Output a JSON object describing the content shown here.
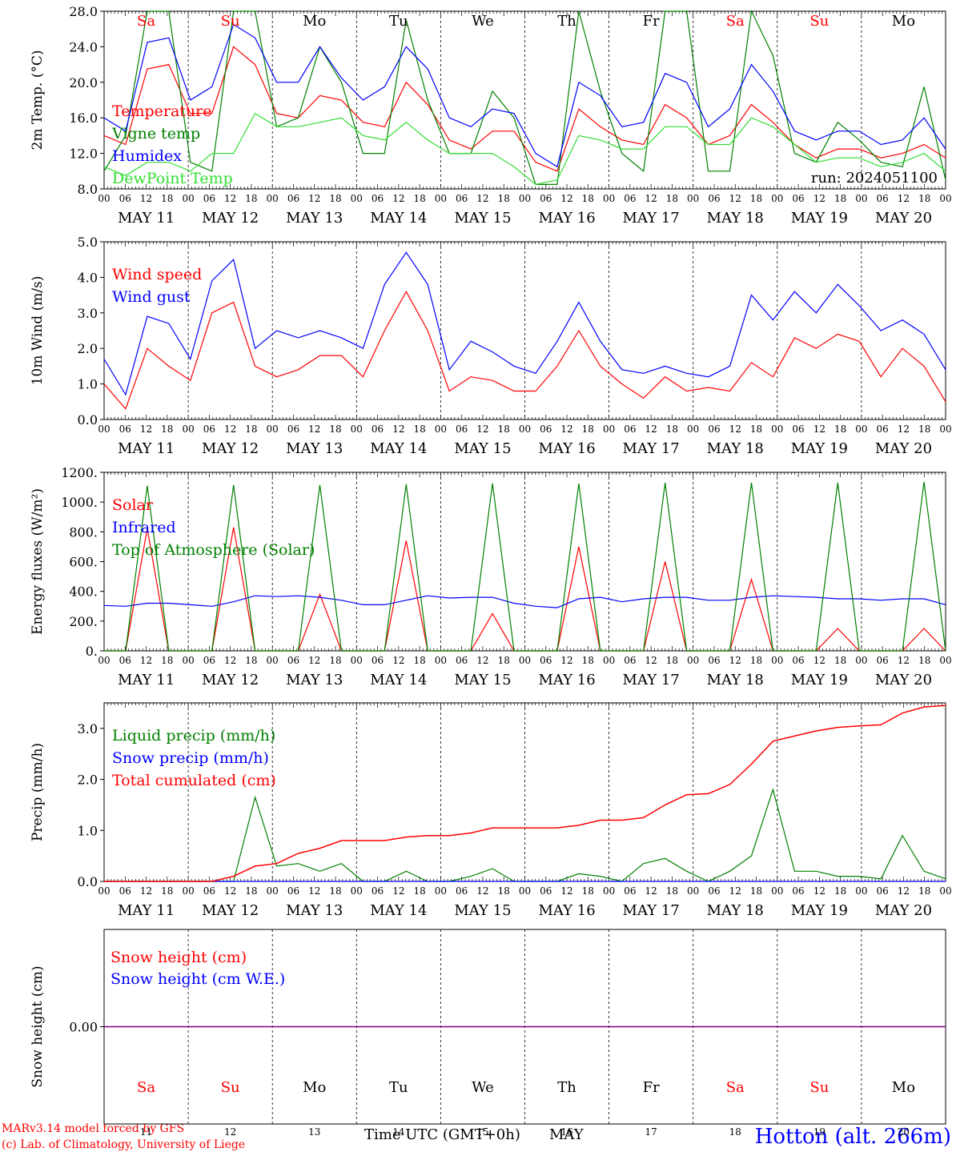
{
  "footer": {
    "model_line": "MARv3.14 model forced by GFS",
    "credit_line": "(c) Lab. of Climatology, University of Liege",
    "x_axis_title": "Time UTC (GMT+0h)",
    "month": "MAY",
    "station": "Hotton (alt. 266m)"
  },
  "colors": {
    "red": "#ff0000",
    "green": "#008000",
    "blue": "#0000ff",
    "light_green": "#33dd33",
    "purple": "#800080",
    "station_blue": "#0000ff"
  },
  "chart_data": [
    {
      "type": "line",
      "ylabel": "2m Temp. (°C)",
      "ylim": [
        8,
        28
      ],
      "yticks": [
        "8.0",
        "12.0",
        "16.0",
        "20.0",
        "24.0",
        "28.0"
      ],
      "annotation": "run: 2024051100",
      "day_labels": [
        "Sa",
        "Su",
        "Mo",
        "Tu",
        "We",
        "Th",
        "Fr",
        "Sa",
        "Su",
        "Mo"
      ],
      "date_labels": [
        "MAY 11",
        "MAY 12",
        "MAY 13",
        "MAY 14",
        "MAY 15",
        "MAY 16",
        "MAY 17",
        "MAY 18",
        "MAY 19",
        "MAY 20"
      ],
      "hour_ticks": [
        "00",
        "06",
        "12",
        "18"
      ],
      "x_step_hours": 6,
      "series": [
        {
          "name": "Temperature",
          "color": "#ff0000",
          "values": [
            14.0,
            13.0,
            21.5,
            22.0,
            16.5,
            16.5,
            24.0,
            22.0,
            16.5,
            16.0,
            18.5,
            18.0,
            15.5,
            15.0,
            20.0,
            17.5,
            13.5,
            12.5,
            14.5,
            14.5,
            11.0,
            10.0,
            17.0,
            15.0,
            13.5,
            13.0,
            17.5,
            16.0,
            13.0,
            14.0,
            17.5,
            15.5,
            13.0,
            11.5,
            12.5,
            12.5,
            11.5,
            12.0,
            13.0,
            11.5
          ]
        },
        {
          "name": "Vigne temp",
          "color": "#008000",
          "values": [
            10.0,
            14.0,
            28.0,
            28.0,
            11.0,
            10.0,
            28.0,
            28.0,
            15.0,
            16.0,
            24.0,
            20.0,
            12.0,
            12.0,
            27.0,
            18.0,
            12.0,
            12.0,
            19.0,
            16.0,
            8.5,
            8.5,
            28.0,
            19.0,
            12.0,
            10.0,
            28.0,
            28.0,
            10.0,
            10.0,
            28.0,
            23.0,
            12.0,
            11.0,
            15.5,
            13.5,
            11.0,
            10.5,
            19.5,
            9.0
          ]
        },
        {
          "name": "Humidex",
          "color": "#0000ff",
          "values": [
            16.0,
            14.5,
            24.5,
            25.0,
            18.0,
            19.5,
            26.5,
            25.0,
            20.0,
            20.0,
            24.0,
            20.5,
            18.0,
            19.5,
            24.0,
            21.5,
            16.0,
            15.0,
            17.0,
            16.5,
            12.0,
            10.5,
            20.0,
            18.5,
            15.0,
            15.5,
            21.0,
            20.0,
            15.0,
            17.0,
            22.0,
            19.0,
            14.5,
            13.5,
            14.5,
            14.5,
            13.0,
            13.5,
            16.0,
            12.5
          ]
        },
        {
          "name": "DewPoint Temp",
          "color": "#33dd33",
          "values": [
            10.5,
            9.5,
            11.0,
            11.0,
            10.0,
            12.0,
            12.0,
            16.5,
            15.0,
            15.0,
            15.5,
            16.0,
            14.0,
            13.5,
            15.5,
            13.5,
            12.0,
            12.0,
            12.0,
            10.5,
            8.5,
            9.0,
            14.0,
            13.5,
            12.5,
            12.5,
            15.0,
            15.0,
            13.0,
            13.0,
            16.0,
            15.0,
            13.0,
            11.0,
            11.5,
            11.5,
            10.5,
            11.0,
            12.0,
            10.0
          ]
        }
      ]
    },
    {
      "type": "line",
      "ylabel": "10m Wind (m/s)",
      "ylim": [
        0,
        5.0
      ],
      "yticks": [
        "0.0",
        "1.0",
        "2.0",
        "3.0",
        "4.0",
        "5.0"
      ],
      "date_labels": [
        "MAY 11",
        "MAY 12",
        "MAY 13",
        "MAY 14",
        "MAY 15",
        "MAY 16",
        "MAY 17",
        "MAY 18",
        "MAY 19",
        "MAY 20"
      ],
      "hour_ticks": [
        "00",
        "06",
        "12",
        "18"
      ],
      "x_step_hours": 6,
      "series": [
        {
          "name": "Wind speed",
          "color": "#ff0000",
          "values": [
            1.0,
            0.3,
            2.0,
            1.5,
            1.1,
            3.0,
            3.3,
            1.5,
            1.2,
            1.4,
            1.8,
            1.8,
            1.2,
            2.5,
            3.6,
            2.5,
            0.8,
            1.2,
            1.1,
            0.8,
            0.8,
            1.5,
            2.5,
            1.5,
            1.0,
            0.6,
            1.2,
            0.8,
            0.9,
            0.8,
            1.6,
            1.2,
            2.3,
            2.0,
            2.4,
            2.2,
            1.2,
            2.0,
            1.5,
            0.5
          ]
        },
        {
          "name": "Wind gust",
          "color": "#0000ff",
          "values": [
            1.7,
            0.7,
            2.9,
            2.7,
            1.7,
            3.9,
            4.5,
            2.0,
            2.5,
            2.3,
            2.5,
            2.3,
            2.0,
            3.8,
            4.7,
            3.8,
            1.4,
            2.2,
            1.9,
            1.5,
            1.3,
            2.2,
            3.3,
            2.2,
            1.4,
            1.3,
            1.5,
            1.3,
            1.2,
            1.5,
            3.5,
            2.8,
            3.6,
            3.0,
            3.8,
            3.2,
            2.5,
            2.8,
            2.4,
            1.4
          ]
        }
      ]
    },
    {
      "type": "line",
      "ylabel": "Energy fluxes (W/m²)",
      "ylim": [
        0,
        1200
      ],
      "yticks": [
        "0.",
        "200.",
        "400.",
        "600.",
        "800.",
        "1000.",
        "1200."
      ],
      "date_labels": [
        "MAY 11",
        "MAY 12",
        "MAY 13",
        "MAY 14",
        "MAY 15",
        "MAY 16",
        "MAY 17",
        "MAY 18",
        "MAY 19",
        "MAY 20"
      ],
      "hour_ticks": [
        "00",
        "06",
        "12",
        "18"
      ],
      "x_step_hours": 6,
      "series": [
        {
          "name": "Solar",
          "color": "#ff0000",
          "values": [
            0,
            0,
            820,
            0,
            0,
            0,
            830,
            0,
            0,
            0,
            380,
            0,
            0,
            0,
            740,
            0,
            0,
            0,
            250,
            0,
            0,
            0,
            700,
            0,
            0,
            0,
            600,
            0,
            0,
            0,
            480,
            0,
            0,
            0,
            150,
            0,
            0,
            0,
            150,
            0
          ]
        },
        {
          "name": "Infrared",
          "color": "#0000ff",
          "values": [
            305,
            300,
            320,
            320,
            310,
            300,
            330,
            370,
            365,
            370,
            360,
            340,
            310,
            310,
            340,
            370,
            355,
            360,
            360,
            320,
            300,
            290,
            350,
            360,
            330,
            350,
            360,
            360,
            340,
            340,
            360,
            370,
            365,
            360,
            350,
            350,
            340,
            350,
            350,
            310
          ]
        },
        {
          "name": "Top of Atmosphere (Solar)",
          "color": "#008000",
          "values": [
            0,
            0,
            1110,
            0,
            0,
            0,
            1115,
            0,
            0,
            0,
            1115,
            0,
            0,
            0,
            1120,
            0,
            0,
            0,
            1125,
            0,
            0,
            0,
            1125,
            0,
            0,
            0,
            1130,
            0,
            0,
            0,
            1130,
            0,
            0,
            0,
            1130,
            0,
            0,
            0,
            1135,
            0
          ]
        }
      ]
    },
    {
      "type": "line",
      "ylabel": "Precip (mm/h)",
      "ylim": [
        0,
        3.5
      ],
      "yticks": [
        "0.0",
        "1.0",
        "2.0",
        "3.0"
      ],
      "date_labels": [
        "MAY 11",
        "MAY 12",
        "MAY 13",
        "MAY 14",
        "MAY 15",
        "MAY 16",
        "MAY 17",
        "MAY 18",
        "MAY 19",
        "MAY 20"
      ],
      "hour_ticks": [
        "00",
        "06",
        "12",
        "18"
      ],
      "x_step_hours": 6,
      "series": [
        {
          "name": "Liquid precip (mm/h)",
          "color": "#008000",
          "values": [
            0,
            0,
            0,
            0,
            0,
            0,
            0,
            1.65,
            0.3,
            0.35,
            0.2,
            0.35,
            0,
            0,
            0.2,
            0,
            0,
            0.1,
            0.25,
            0,
            0,
            0,
            0.15,
            0.1,
            0,
            0.35,
            0.45,
            0.2,
            0,
            0.2,
            0.5,
            1.8,
            0.2,
            0.2,
            0.1,
            0.1,
            0.05,
            0.9,
            0.2,
            0.05
          ]
        },
        {
          "name": "Snow precip (mm/h)",
          "color": "#0000ff",
          "values": [
            0,
            0,
            0,
            0,
            0,
            0,
            0,
            0,
            0,
            0,
            0,
            0,
            0,
            0,
            0,
            0,
            0,
            0,
            0,
            0,
            0,
            0,
            0,
            0,
            0,
            0,
            0,
            0,
            0,
            0,
            0,
            0,
            0,
            0,
            0,
            0,
            0,
            0,
            0,
            0
          ]
        },
        {
          "name": "Total cumulated (cm)",
          "color": "#ff0000",
          "values": [
            0,
            0,
            0,
            0,
            0,
            0,
            0.1,
            0.3,
            0.35,
            0.55,
            0.65,
            0.8,
            0.8,
            0.8,
            0.87,
            0.9,
            0.9,
            0.95,
            1.05,
            1.05,
            1.05,
            1.05,
            1.1,
            1.2,
            1.2,
            1.25,
            1.5,
            1.7,
            1.72,
            1.9,
            2.3,
            2.75,
            2.85,
            2.95,
            3.02,
            3.05,
            3.07,
            3.3,
            3.42,
            3.45
          ]
        }
      ]
    },
    {
      "type": "line",
      "ylabel": "Snow height (cm)",
      "ylim": [
        -1,
        1
      ],
      "yticks": [
        "0.00"
      ],
      "day_labels": [
        "Sa",
        "Su",
        "Mo",
        "Tu",
        "We",
        "Th",
        "Fr",
        "Sa",
        "Su",
        "Mo"
      ],
      "day_numbers": [
        "11",
        "12",
        "13",
        "14",
        "15",
        "16",
        "17",
        "18",
        "19",
        "20"
      ],
      "series": [
        {
          "name": "Snow height (cm)",
          "color": "#ff0000",
          "values": [
            0,
            0
          ]
        },
        {
          "name": "Snow height (cm W.E.)",
          "color": "#0000ff",
          "values": [
            0,
            0
          ]
        }
      ]
    }
  ]
}
